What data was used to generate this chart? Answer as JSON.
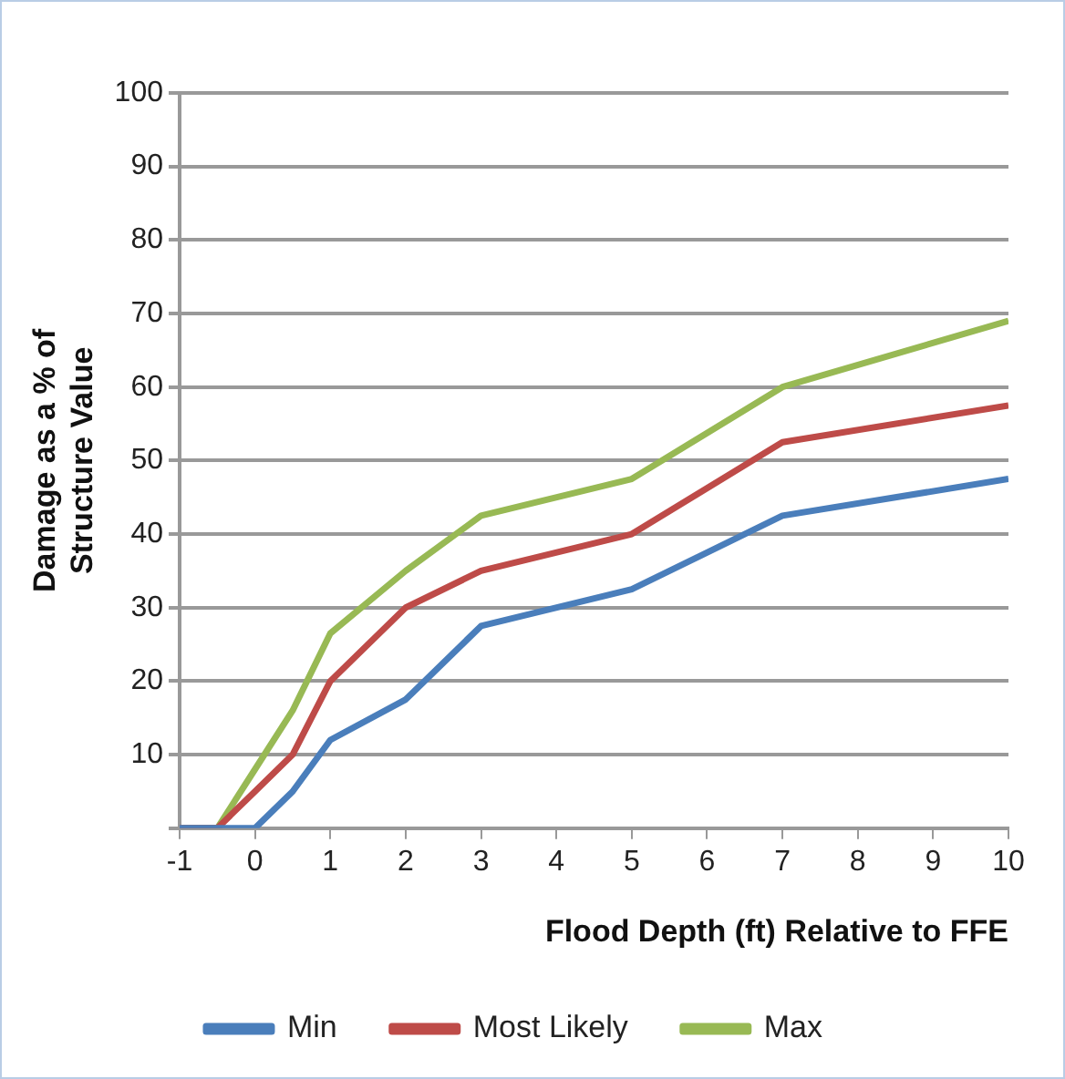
{
  "chart_data": {
    "type": "line",
    "xlabel": "Flood Depth (ft) Relative to FFE",
    "ylabel": "Damage as a % of\nStructure Value",
    "x": [
      -1,
      -0.5,
      0,
      0.5,
      1,
      2,
      3,
      5,
      7,
      10
    ],
    "series": [
      {
        "name": "Min",
        "color": "#4a7ebb",
        "values": [
          0,
          0,
          0,
          5,
          12,
          17.5,
          27.5,
          32.5,
          42.5,
          47.5
        ]
      },
      {
        "name": "Most Likely",
        "color": "#be4b48",
        "values": [
          0,
          0,
          5,
          10,
          20,
          30,
          35,
          40,
          52.5,
          57.5
        ]
      },
      {
        "name": "Max",
        "color": "#98b954",
        "values": [
          0,
          0,
          8,
          16,
          26.5,
          35,
          42.5,
          47.5,
          60,
          69
        ]
      }
    ],
    "xlim": [
      -1,
      10
    ],
    "xticks": [
      -1,
      0,
      1,
      2,
      3,
      4,
      5,
      6,
      7,
      8,
      9,
      10
    ],
    "ylim": [
      0,
      100
    ],
    "yticks": [
      {
        "value": 0,
        "label": null
      },
      10,
      20,
      30,
      40,
      50,
      60,
      70,
      80,
      90,
      100
    ],
    "grid": "y",
    "legend": "bottom",
    "marker": "none",
    "line_style": "solid"
  }
}
